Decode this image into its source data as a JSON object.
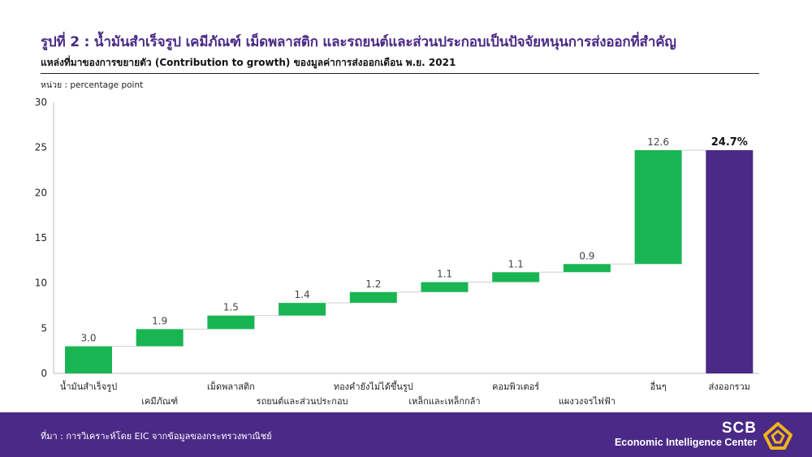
{
  "title": "รูปที่ 2 : น้ำมันสำเร็จรูป เคมีภัณฑ์ เม็ดพลาสติก และรถยนต์และส่วนประกอบเป็นปัจจัยหนุนการส่งออกที่สำคัญ",
  "subtitle": "แหล่งที่มาของการขยายตัว (Contribution to growth) ของมูลค่าการส่งออกเดือน พ.ย. 2021",
  "unit_label": "หน่วย : percentage point",
  "source": "ที่มา : การวิเคราะห์โดย EIC จากข้อมูลของกระทรวงพาณิชย์",
  "brand": {
    "name": "SCB",
    "tagline": "Economic Intelligence Center"
  },
  "colors": {
    "accent": "#4a2a86",
    "positive_bar": "#1ab553",
    "total_bar": "#4a2a86"
  },
  "chart_data": {
    "type": "bar",
    "subtype": "waterfall",
    "categories": [
      "น้ำมันสำเร็จรูป",
      "เคมีภัณฑ์",
      "เม็ดพลาสติก",
      "รถยนต์และส่วนประกอบ",
      "ทองคำยังไม่ได้ขึ้นรูป",
      "เหล็กและเหล็กกล้า",
      "คอมพิวเตอร์",
      "แผงวงจรไฟฟ้า",
      "อื่นๆ",
      "ส่งออกรวม"
    ],
    "values": [
      3.0,
      1.9,
      1.5,
      1.4,
      1.2,
      1.1,
      1.1,
      0.9,
      12.6,
      24.7
    ],
    "data_labels": [
      "3.0",
      "1.9",
      "1.5",
      "1.4",
      "1.2",
      "1.1",
      "1.1",
      "0.9",
      "12.6",
      "24.7%"
    ],
    "total_index": 9,
    "yticks": [
      "0",
      "5",
      "10",
      "15",
      "20",
      "25",
      "30"
    ],
    "ylim": [
      0,
      30
    ],
    "grid": false
  }
}
